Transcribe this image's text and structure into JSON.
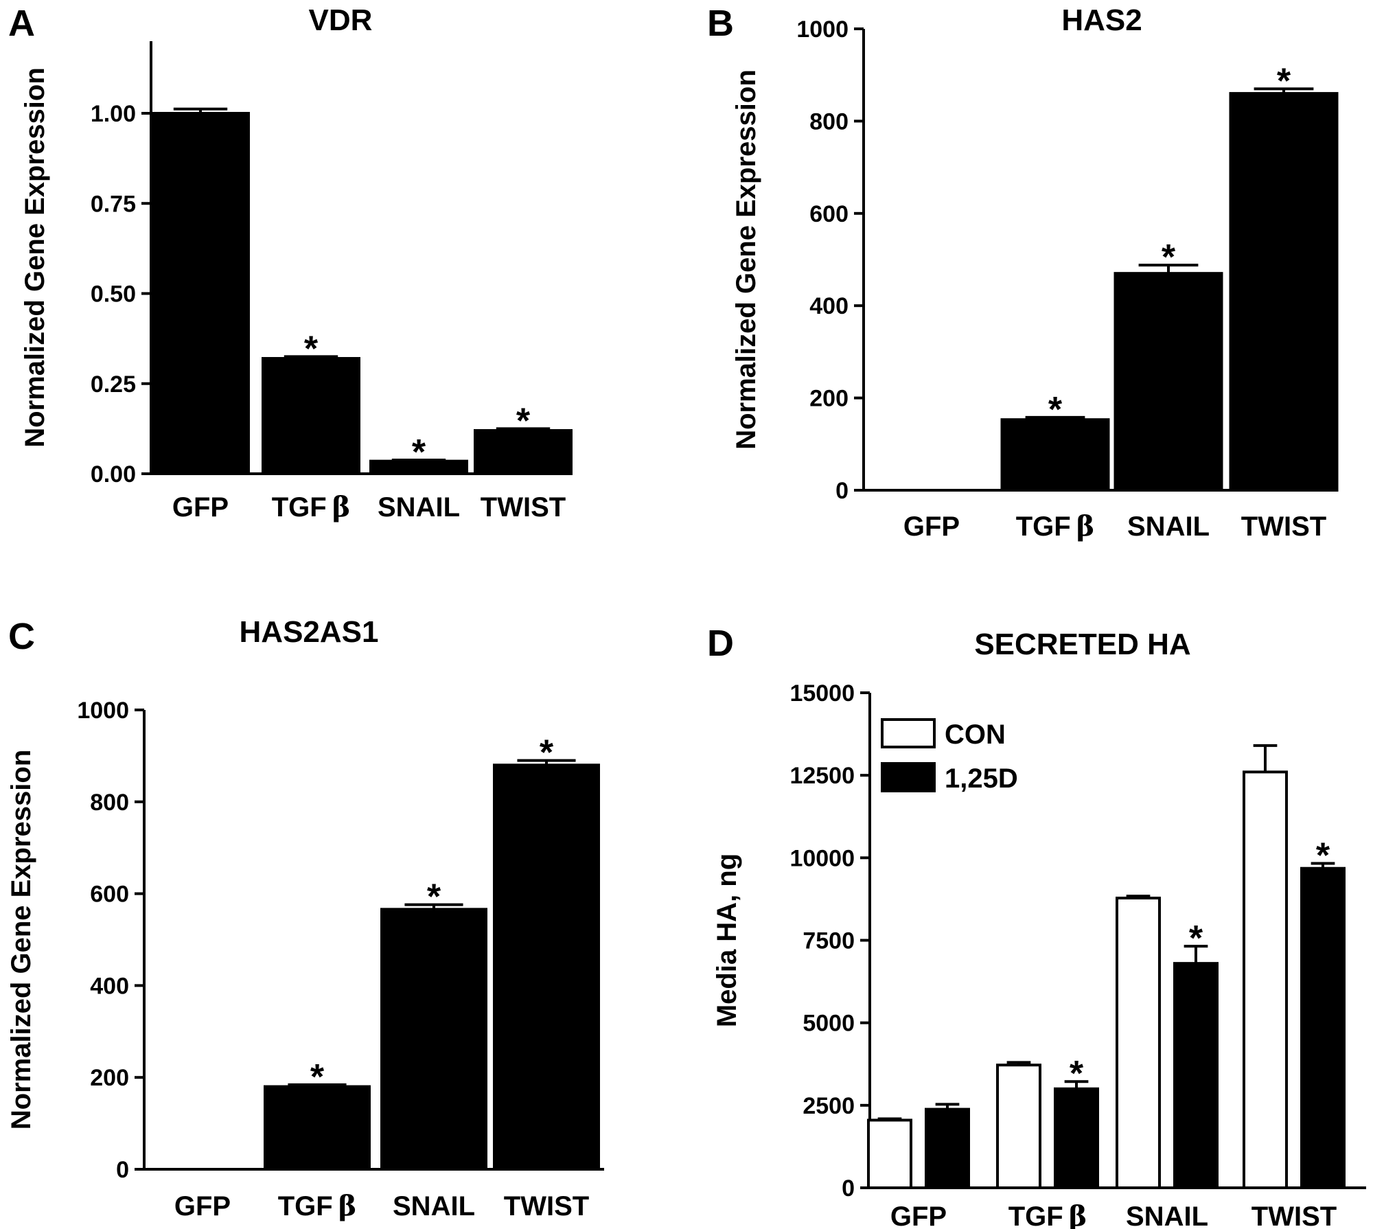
{
  "chart_data": [
    {
      "panel": "A",
      "type": "bar",
      "title": "VDR",
      "ylabel": "Normalized Gene Expression",
      "xlabel": "",
      "categories": [
        "GFP",
        "TGF",
        "SNAIL",
        "TWIST"
      ],
      "category_suffix": [
        "",
        "β",
        "",
        ""
      ],
      "values": [
        1.0,
        0.32,
        0.035,
        0.12
      ],
      "errors": [
        0.012,
        0.005,
        0.003,
        0.005
      ],
      "significant": [
        false,
        true,
        true,
        true
      ],
      "ylim": [
        0,
        1.2
      ],
      "yticks": [
        0,
        0.25,
        0.5,
        0.75,
        1.0
      ],
      "ytick_labels": [
        "0.00",
        "0.25",
        "0.50",
        "0.75",
        "1.00"
      ],
      "bar_color": "#000000"
    },
    {
      "panel": "B",
      "type": "bar",
      "title": "HAS2",
      "ylabel": "Normalized Gene Expression",
      "xlabel": "",
      "categories": [
        "GFP",
        "TGF",
        "SNAIL",
        "TWIST"
      ],
      "category_suffix": [
        "",
        "β",
        "",
        ""
      ],
      "values": [
        0,
        153,
        470,
        860
      ],
      "errors": [
        0,
        5,
        18,
        10
      ],
      "significant": [
        false,
        true,
        true,
        true
      ],
      "ylim": [
        0,
        1000
      ],
      "yticks": [
        0,
        200,
        400,
        600,
        800,
        1000
      ],
      "ytick_labels": [
        "0",
        "200",
        "400",
        "600",
        "800",
        "1000"
      ],
      "bar_color": "#000000"
    },
    {
      "panel": "C",
      "type": "bar",
      "title": "HAS2AS1",
      "ylabel": "Normalized Gene Expression",
      "xlabel": "",
      "categories": [
        "GFP",
        "TGF",
        "SNAIL",
        "TWIST"
      ],
      "category_suffix": [
        "",
        "β",
        "",
        ""
      ],
      "values": [
        0,
        180,
        566,
        880
      ],
      "errors": [
        0,
        4,
        10,
        10
      ],
      "significant": [
        false,
        true,
        true,
        true
      ],
      "ylim": [
        0,
        1000
      ],
      "yticks": [
        0,
        200,
        400,
        600,
        800,
        1000
      ],
      "ytick_labels": [
        "0",
        "200",
        "400",
        "600",
        "800",
        "1000"
      ],
      "bar_color": "#000000"
    },
    {
      "panel": "D",
      "type": "bar",
      "title": "SECRETED HA",
      "ylabel": "Media HA, ng",
      "xlabel": "",
      "categories": [
        "GFP",
        "TGF",
        "SNAIL",
        "TWIST"
      ],
      "category_suffix": [
        "",
        "β",
        "",
        ""
      ],
      "series": [
        {
          "name": "CON",
          "values": [
            2050,
            3720,
            8780,
            12600
          ],
          "errors": [
            40,
            80,
            60,
            800
          ],
          "significant": [
            false,
            false,
            false,
            false
          ],
          "fill": "#ffffff"
        },
        {
          "name": "1,25D",
          "values": [
            2380,
            3000,
            6800,
            9680
          ],
          "errors": [
            150,
            220,
            520,
            150
          ],
          "significant": [
            false,
            true,
            true,
            true
          ],
          "fill": "#000000"
        }
      ],
      "ylim": [
        0,
        15000
      ],
      "yticks": [
        0,
        2500,
        5000,
        7500,
        10000,
        12500,
        15000
      ],
      "ytick_labels": [
        "0",
        "2500",
        "5000",
        "7500",
        "10000",
        "12500",
        "15000"
      ],
      "legend_position": "top-left"
    }
  ],
  "significance_marker": "*"
}
